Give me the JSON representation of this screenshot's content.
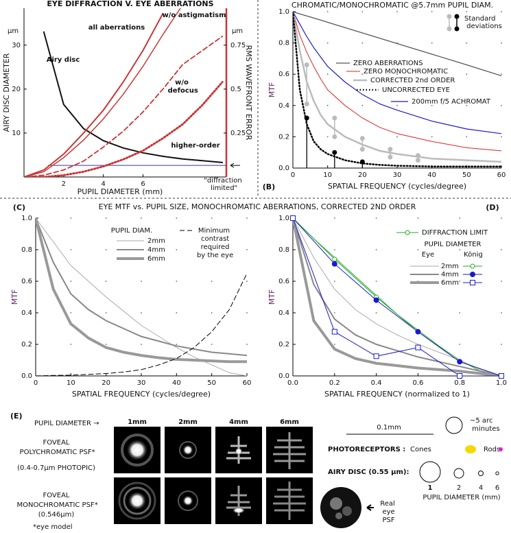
{
  "chart_data": [
    {
      "type": "line",
      "title": "EYE DIFFRACTION V. EYE ABERRATIONS",
      "xlabel": "PUPIL DIAMETER (mm)",
      "ylabel": "AIRY DISC DIAMETER",
      "y2label": "RMS WAVEFRONT ERROR",
      "yunit": "µm",
      "y2unit": "µm",
      "x": [
        0,
        1,
        2,
        3,
        4,
        5,
        6,
        7,
        8,
        9,
        10
      ],
      "xlim": [
        0,
        10.2
      ],
      "xticks": [
        2,
        4,
        6
      ],
      "ylim": [
        0,
        38.4
      ],
      "yticks": [
        10,
        20,
        30
      ],
      "y2lim": [
        0,
        0.96
      ],
      "y2ticks": [
        0.25,
        0.5,
        0.75
      ],
      "series": [
        {
          "name": "Airy disc",
          "color": "#111111",
          "width": 2,
          "dash": "solid",
          "values": [
            null,
            33,
            16.5,
            11,
            8.25,
            6.6,
            5.5,
            4.7,
            4.1,
            3.7,
            3.3
          ]
        },
        {
          "name": "all aberrations",
          "color": "#cc3333",
          "width": 2,
          "dash": "solid",
          "axis": "y2",
          "values": [
            0,
            0.04,
            0.13,
            0.25,
            0.38,
            0.54,
            0.72,
            0.93,
            null,
            null,
            null
          ]
        },
        {
          "name": "w/o astigmatism",
          "color": "#cc3333",
          "width": 1.5,
          "dash": "solid",
          "axis": "y2",
          "values": [
            0,
            0.03,
            0.11,
            0.21,
            0.33,
            0.47,
            0.63,
            0.81,
            0.98,
            null,
            null
          ]
        },
        {
          "name": "w/o defocus",
          "color": "#cc3333",
          "width": 1.8,
          "dash": "dashed",
          "axis": "y2",
          "values": [
            0,
            0.01,
            0.04,
            0.09,
            0.17,
            0.26,
            0.37,
            0.5,
            0.64,
            0.72,
            0.8
          ]
        },
        {
          "name": "higher-order",
          "color": "#cc3333",
          "width": 3,
          "dash": "dotted",
          "axis": "y2",
          "values": [
            0,
            0,
            0.01,
            0.03,
            0.06,
            0.1,
            0.15,
            0.22,
            0.3,
            0.41,
            0.54
          ]
        }
      ],
      "reference": {
        "value": 0.066,
        "axis": "y2",
        "color": "#3333bb",
        "label": "\"diffraction limited\""
      }
    },
    {
      "type": "line",
      "title": "CHROMATIC/MONOCHROMATIC @5.7mm PUPIL DIAM.",
      "panel": "(B)",
      "xlabel": "SPATIAL FREQUENCY (cycles/degree)",
      "ylabel": "MTF",
      "x": [
        0,
        2,
        4,
        6,
        8,
        10,
        15,
        20,
        25,
        30,
        40,
        50,
        60
      ],
      "xlim": [
        0,
        60
      ],
      "xticks": [
        0,
        10,
        20,
        30,
        40,
        50,
        60
      ],
      "ylim": [
        0,
        1
      ],
      "yticks": [
        {
          "value": 0,
          "label": "0.0"
        },
        0.2,
        0.4,
        0.6,
        0.8,
        {
          "value": 1,
          "label": "1.0"
        }
      ],
      "grid": "dots",
      "series": [
        {
          "name": "ZERO ABERRATIONS",
          "color": "#555555",
          "width": 1.3,
          "dash": "solid",
          "values": [
            1,
            0.986,
            0.973,
            0.959,
            0.946,
            0.932,
            0.898,
            0.864,
            0.83,
            0.796,
            0.728,
            0.66,
            0.59
          ]
        },
        {
          "name": "ZERO MONOCHROMATIC",
          "color": "#dd2222",
          "width": 1,
          "dash": "solid",
          "values": [
            1,
            0.85,
            0.74,
            0.65,
            0.57,
            0.5,
            0.4,
            0.32,
            0.26,
            0.22,
            0.17,
            0.13,
            0.11
          ]
        },
        {
          "name": "CORRECTED 2nd ORDER",
          "color": "#bbbbbb",
          "width": 2.5,
          "dash": "solid",
          "values": [
            1,
            0.75,
            0.55,
            0.43,
            0.34,
            0.28,
            0.2,
            0.15,
            0.11,
            0.09,
            0.06,
            0.05,
            0.04
          ]
        },
        {
          "name": "UNCORRECTED EYE",
          "color": "#000000",
          "width": 2.5,
          "dash": "dotted",
          "values": [
            1,
            0.5,
            0.28,
            0.17,
            0.12,
            0.09,
            0.05,
            0.03,
            0.02,
            0.015,
            0.01,
            0.01,
            0.01
          ]
        },
        {
          "name": "200mm f/5 ACHROMAT",
          "color": "#1a1acc",
          "width": 1.2,
          "dash": "solid",
          "values": [
            1,
            0.92,
            0.84,
            0.77,
            0.71,
            0.65,
            0.55,
            0.47,
            0.41,
            0.37,
            0.3,
            0.25,
            0.22
          ]
        }
      ],
      "std_dev": {
        "label": "Standard deviations",
        "gray": {
          "color": "#bbbbbb",
          "x": [
            4,
            12,
            20,
            28,
            36
          ],
          "high": [
            0.66,
            0.32,
            0.19,
            0.12,
            0.08
          ],
          "low": [
            0.41,
            0.2,
            0.12,
            0.07,
            0.05
          ]
        },
        "black": {
          "color": "#000000",
          "x": [
            4,
            12,
            20
          ],
          "values": [
            0.32,
            0.1,
            0.04
          ]
        }
      }
    },
    {
      "type": "line",
      "title": "EYE MTF vs. PUPIL SIZE, MONOCHROMATIC ABERRATIONS, CORRECTED 2ND ORDER",
      "panel": "(C)",
      "xlabel": "SPATIAL FREQUENCY (cycles/degree)",
      "ylabel": "MTF",
      "legend_title": "PUPIL DIAM.",
      "x": [
        0,
        5,
        10,
        15,
        20,
        25,
        30,
        35,
        40,
        45,
        50,
        55,
        60
      ],
      "xlim": [
        0,
        60
      ],
      "xticks": [
        0,
        10,
        20,
        30,
        40,
        50,
        60
      ],
      "ylim": [
        0,
        1
      ],
      "yticks": [
        {
          "value": 0,
          "label": "0.0"
        },
        0.2,
        0.4,
        0.6,
        0.8,
        {
          "value": 1,
          "label": "1.0"
        }
      ],
      "grid": "dots",
      "series": [
        {
          "name": "2mm",
          "color": "#aaaaaa",
          "width": 1,
          "dash": "solid",
          "values": [
            1,
            0.85,
            0.7,
            0.6,
            0.5,
            0.41,
            0.32,
            0.25,
            0.18,
            0.12,
            0.07,
            0.02,
            0
          ]
        },
        {
          "name": "4mm",
          "color": "#888888",
          "width": 2,
          "dash": "solid",
          "values": [
            1,
            0.72,
            0.52,
            0.42,
            0.35,
            0.3,
            0.25,
            0.22,
            0.19,
            0.17,
            0.15,
            0.14,
            0.13
          ]
        },
        {
          "name": "6mm",
          "color": "#999999",
          "width": 4,
          "dash": "solid",
          "values": [
            1,
            0.55,
            0.33,
            0.24,
            0.18,
            0.15,
            0.13,
            0.115,
            0.105,
            0.1,
            0.095,
            0.09,
            0.09
          ]
        },
        {
          "name": "Minimum contrast required by the eye",
          "color": "#000000",
          "width": 1,
          "dash": "dashed",
          "values": [
            0,
            0.003,
            0.005,
            0.01,
            0.015,
            0.025,
            0.04,
            0.07,
            0.11,
            0.18,
            0.28,
            0.42,
            0.65
          ]
        }
      ]
    },
    {
      "type": "line",
      "panel": "(D)",
      "xlabel": "SPATIAL FREQUENCY (normalized to 1)",
      "ylabel": "MTF",
      "legend_title": "PUPIL DIAMETER",
      "eye_label": "Eye",
      "konig_label": "König",
      "x": [
        0,
        0.1,
        0.2,
        0.3,
        0.4,
        0.5,
        0.6,
        0.7,
        0.8,
        0.9,
        1
      ],
      "xlim": [
        0,
        1
      ],
      "xticks": [
        {
          "value": 0,
          "label": "0.0"
        },
        0.2,
        0.4,
        0.6,
        0.8,
        {
          "value": 1,
          "label": "1.0"
        }
      ],
      "ylim": [
        0,
        1
      ],
      "yticks": [
        {
          "value": 0,
          "label": "0.0"
        },
        0.2,
        0.4,
        0.6,
        0.8,
        {
          "value": 1,
          "label": "1.0"
        }
      ],
      "grid": "dots",
      "series": [
        {
          "name": "DIFFRACTION LIMIT",
          "color": "#22aa22",
          "width": 1,
          "dash": "solid",
          "values": [
            1,
            0.87,
            0.75,
            0.63,
            0.51,
            0.39,
            0.29,
            0.19,
            0.1,
            0.03,
            0
          ]
        },
        {
          "name": "2mm",
          "color": "#aaaaaa",
          "width": 1,
          "dash": "solid",
          "group": "eye",
          "values": [
            1,
            0.75,
            0.55,
            0.42,
            0.33,
            0.26,
            0.2,
            0.15,
            0.1,
            0.04,
            0
          ]
        },
        {
          "name": "4mm",
          "color": "#888888",
          "width": 2,
          "dash": "solid",
          "group": "eye",
          "values": [
            1,
            0.58,
            0.36,
            0.26,
            0.2,
            0.16,
            0.12,
            0.09,
            0.06,
            0.03,
            0
          ]
        },
        {
          "name": "6mm",
          "color": "#999999",
          "width": 4,
          "dash": "solid",
          "group": "eye",
          "values": [
            1,
            0.35,
            0.17,
            0.11,
            0.08,
            0.065,
            0.05,
            0.04,
            0.03,
            0.015,
            0
          ]
        },
        {
          "color": "#22aa22",
          "width": 1,
          "dash": "solid",
          "group": "konig",
          "marker": "circle-open",
          "x": [
            0,
            0.2,
            0.4,
            0.6,
            0.8,
            1
          ],
          "values": [
            1,
            0.74,
            0.5,
            0.28,
            0.09,
            0
          ]
        },
        {
          "color": "#1a1acc",
          "width": 1,
          "dash": "solid",
          "group": "konig",
          "marker": "circle",
          "x": [
            0,
            0.2,
            0.4,
            0.6,
            0.8,
            1
          ],
          "values": [
            1,
            0.71,
            0.48,
            0.28,
            0.09,
            0
          ]
        },
        {
          "color": "#1a1acc",
          "width": 1,
          "dash": "solid",
          "group": "konig",
          "marker": "square-open",
          "x": [
            0,
            0.2,
            0.4,
            0.6,
            0.8,
            1
          ],
          "values": [
            1,
            0.28,
            0.125,
            0.18,
            0,
            0
          ]
        }
      ]
    }
  ],
  "panel_e": {
    "label": "(E)",
    "pupil_diameter": "PUPIL DIAMETER →",
    "sizes": [
      "1mm",
      "2mm",
      "4mm",
      "6mm"
    ],
    "poly": "FOVEAL POLYCHROMATIC PSF*",
    "poly_range": "(0.4-0.7µm PHOTOPIC)",
    "mono": "FOVEAL MONOCHROMATIC PSF*",
    "mono_range": "(0.546µm)",
    "footnote": "*eye model",
    "real_eye": "Real eye PSF",
    "scale": "0.1mm",
    "arc": "~5 arc minutes",
    "photoreceptors": "PHOTORECEPTORS :",
    "cones": "Cones",
    "rods": "Rods",
    "airy": "AIRY DISC (0.55 µm):",
    "airy_sizes": [
      "1",
      "2",
      "4",
      "6"
    ],
    "airy_axis": "PUPIL DIAMETER (mm)"
  }
}
